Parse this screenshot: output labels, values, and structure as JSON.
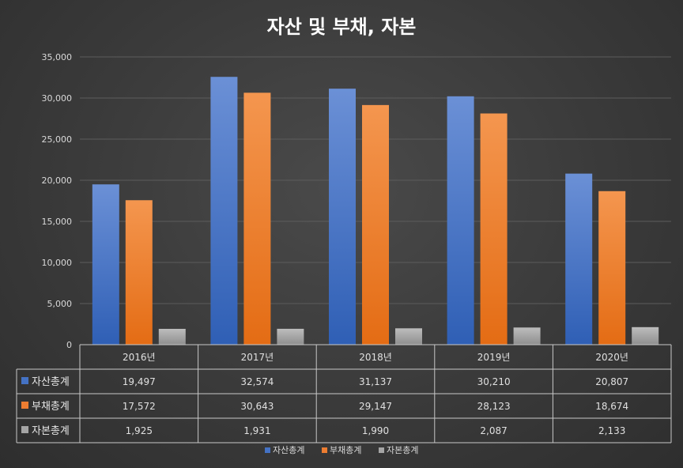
{
  "chart_data": {
    "type": "bar",
    "title": "자산 및 부채, 자본",
    "categories": [
      "2016년",
      "2017년",
      "2018년",
      "2019년",
      "2020년"
    ],
    "series": [
      {
        "name": "자산총계",
        "values": [
          19497,
          32574,
          31137,
          30210,
          20807
        ],
        "labels": [
          "19,497",
          "32,574",
          "31,137",
          "30,210",
          "20,807"
        ],
        "color": "#4472c4"
      },
      {
        "name": "부채총계",
        "values": [
          17572,
          30643,
          29147,
          28123,
          18674
        ],
        "labels": [
          "17,572",
          "30,643",
          "29,147",
          "28,123",
          "18,674"
        ],
        "color": "#ed7d31"
      },
      {
        "name": "자본총계",
        "values": [
          1925,
          1931,
          1990,
          2087,
          2133
        ],
        "labels": [
          "1,925",
          "1,931",
          "1,990",
          "2,087",
          "2,133"
        ],
        "color": "#a5a5a5"
      }
    ],
    "ylim": [
      0,
      35000
    ],
    "yticks": [
      "0",
      "5,000",
      "10,000",
      "15,000",
      "20,000",
      "25,000",
      "30,000",
      "35,000"
    ],
    "grid": true,
    "data_table": true,
    "legend_position": "bottom"
  }
}
